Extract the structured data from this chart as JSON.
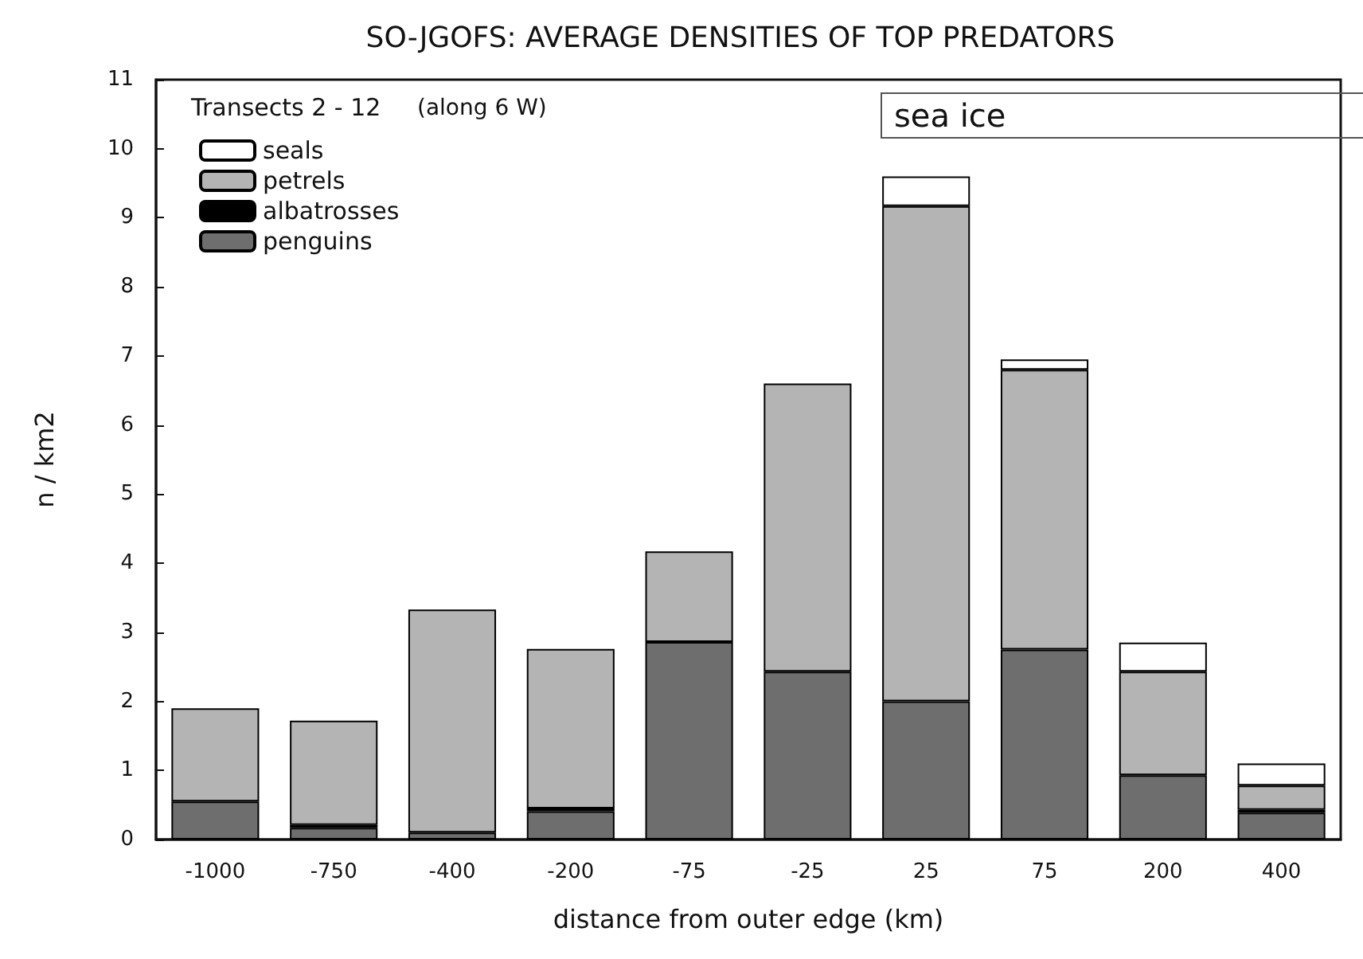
{
  "chart_data": {
    "type": "bar",
    "title": "SO-JGOFS: AVERAGE DENSITIES OF TOP PREDATORS",
    "xlabel": "distance from outer edge (km)",
    "ylabel": "n / km2",
    "legend_title": "Transects 2 - 12",
    "annotations": [
      "(along 6 W)",
      "sea ice"
    ],
    "categories": [
      "-1000",
      "-750",
      "-400",
      "-200",
      "-75",
      "-25",
      "25",
      "75",
      "200",
      "400"
    ],
    "stacked": true,
    "series": [
      {
        "name": "penguins",
        "color": "#6e6e6e",
        "values": [
          0.55,
          0.17,
          0.1,
          0.41,
          2.86,
          2.43,
          2.0,
          2.75,
          0.93,
          0.39
        ]
      },
      {
        "name": "albatrosses",
        "color": "#000000",
        "values": [
          0,
          0.04,
          0,
          0.04,
          0,
          0,
          0,
          0,
          0,
          0.04
        ]
      },
      {
        "name": "petrels",
        "color": "#b4b4b4",
        "values": [
          1.35,
          1.51,
          3.23,
          2.31,
          1.31,
          4.17,
          7.17,
          4.05,
          1.5,
          0.35
        ]
      },
      {
        "name": "seals",
        "color": "#ffffff",
        "values": [
          0,
          0,
          0,
          0,
          0,
          0,
          0.43,
          0.15,
          0.42,
          0.32
        ]
      }
    ],
    "ylim": [
      0,
      11
    ],
    "yticks": [
      0,
      1,
      2,
      3,
      4,
      5,
      6,
      7,
      8,
      9,
      10,
      11
    ],
    "legend": "top left"
  }
}
